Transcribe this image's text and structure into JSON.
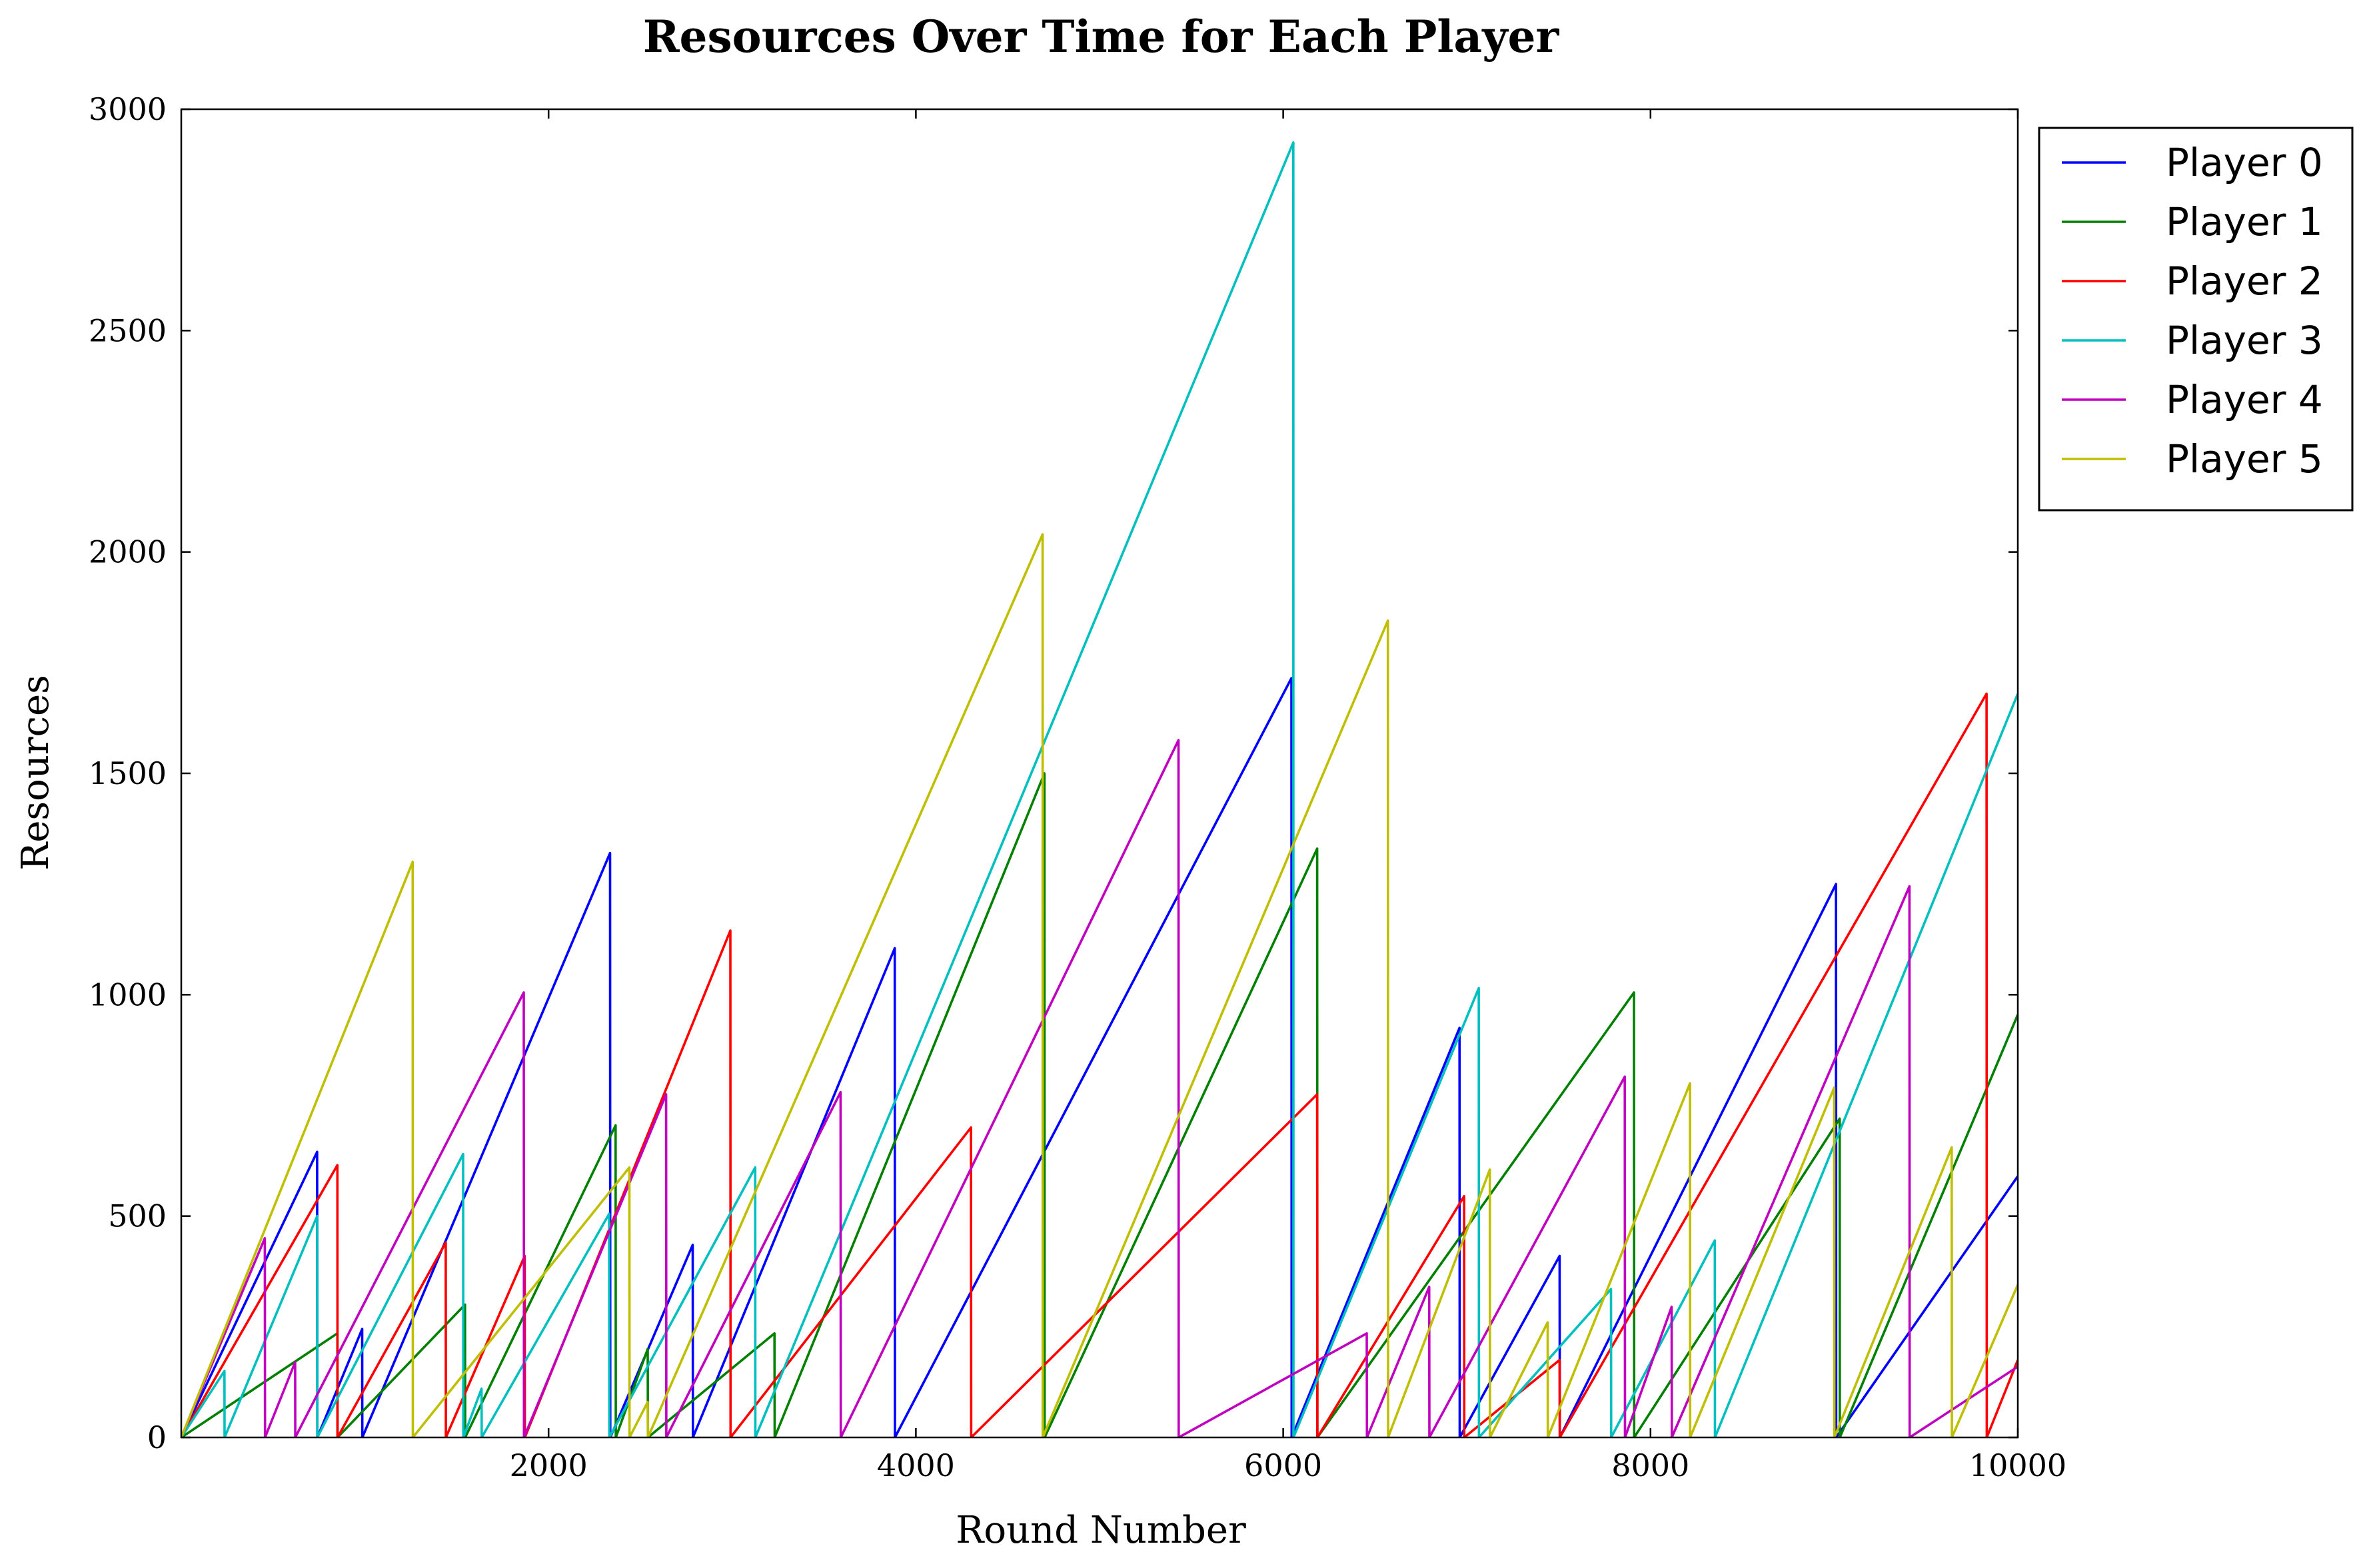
{
  "chart_data": {
    "type": "line",
    "title": "Resources Over Time for Each Player",
    "xlabel": "Round Number",
    "ylabel": "Resources",
    "xlim": [
      0,
      10000
    ],
    "ylim": [
      0,
      3000
    ],
    "xticks": [
      2000,
      4000,
      6000,
      8000,
      10000
    ],
    "xtick_labels": [
      "2000",
      "4000",
      "6000",
      "8000",
      "10000"
    ],
    "yticks": [
      0,
      500,
      1000,
      1500,
      2000,
      2500,
      3000
    ],
    "ytick_labels": [
      "0",
      "500",
      "1000",
      "1500",
      "2000",
      "2500",
      "3000"
    ],
    "grid": false,
    "legend_position": "upper-right-outside",
    "series": [
      {
        "name": "Player 0",
        "color": "#0000ff",
        "x": [
          0,
          740,
          741,
          985,
          986,
          2335,
          2336,
          2785,
          2786,
          3885,
          3886,
          6045,
          6046,
          6960,
          6961,
          7505,
          7506,
          9010,
          9011,
          10000
        ],
        "y": [
          0,
          645,
          0,
          245,
          0,
          1320,
          0,
          435,
          0,
          1105,
          0,
          1715,
          0,
          925,
          0,
          410,
          0,
          1250,
          0,
          590
        ]
      },
      {
        "name": "Player 1",
        "color": "#008000",
        "x": [
          0,
          850,
          851,
          1545,
          1546,
          2365,
          2366,
          2540,
          2541,
          3230,
          3231,
          4700,
          4701,
          6185,
          6186,
          7910,
          7911,
          9030,
          9031,
          10000
        ],
        "y": [
          0,
          235,
          0,
          300,
          0,
          705,
          0,
          200,
          0,
          235,
          0,
          1500,
          0,
          1330,
          0,
          1005,
          0,
          720,
          0,
          955
        ]
      },
      {
        "name": "Player 2",
        "color": "#ff0000",
        "x": [
          0,
          850,
          851,
          1440,
          1441,
          1870,
          1871,
          2990,
          2991,
          4300,
          4301,
          6185,
          6186,
          6985,
          6986,
          7505,
          7506,
          9830,
          9831,
          10000
        ],
        "y": [
          0,
          615,
          0,
          440,
          0,
          410,
          0,
          1145,
          0,
          700,
          0,
          775,
          0,
          545,
          0,
          175,
          0,
          1680,
          0,
          175
        ]
      },
      {
        "name": "Player 3",
        "color": "#00bfbf",
        "x": [
          0,
          235,
          236,
          740,
          741,
          1535,
          1536,
          1635,
          1636,
          2330,
          2331,
          3125,
          3126,
          6055,
          6056,
          7065,
          7066,
          7785,
          7786,
          8350,
          8351,
          10000
        ],
        "y": [
          0,
          150,
          0,
          500,
          0,
          640,
          0,
          110,
          0,
          505,
          0,
          610,
          0,
          2925,
          0,
          1015,
          0,
          335,
          0,
          445,
          0,
          1680
        ]
      },
      {
        "name": "Player 4",
        "color": "#bf00bf",
        "x": [
          0,
          455,
          456,
          620,
          621,
          1865,
          1866,
          2640,
          2641,
          3590,
          3591,
          5430,
          5431,
          6455,
          6456,
          6795,
          6796,
          7860,
          7861,
          8115,
          8116,
          9410,
          9411,
          10000
        ],
        "y": [
          0,
          450,
          0,
          170,
          0,
          1005,
          0,
          775,
          0,
          780,
          0,
          1575,
          0,
          235,
          0,
          340,
          0,
          815,
          0,
          295,
          0,
          1245,
          0,
          160
        ]
      },
      {
        "name": "Player 5",
        "color": "#bfbf00",
        "x": [
          0,
          1260,
          1261,
          2440,
          2441,
          2540,
          2541,
          4690,
          4691,
          6570,
          6571,
          7125,
          7126,
          7440,
          7441,
          8215,
          8216,
          9000,
          9001,
          9640,
          9641,
          10000
        ],
        "y": [
          0,
          1300,
          0,
          610,
          0,
          80,
          0,
          2040,
          0,
          1845,
          0,
          605,
          0,
          260,
          0,
          800,
          0,
          790,
          0,
          655,
          0,
          345
        ]
      }
    ]
  }
}
